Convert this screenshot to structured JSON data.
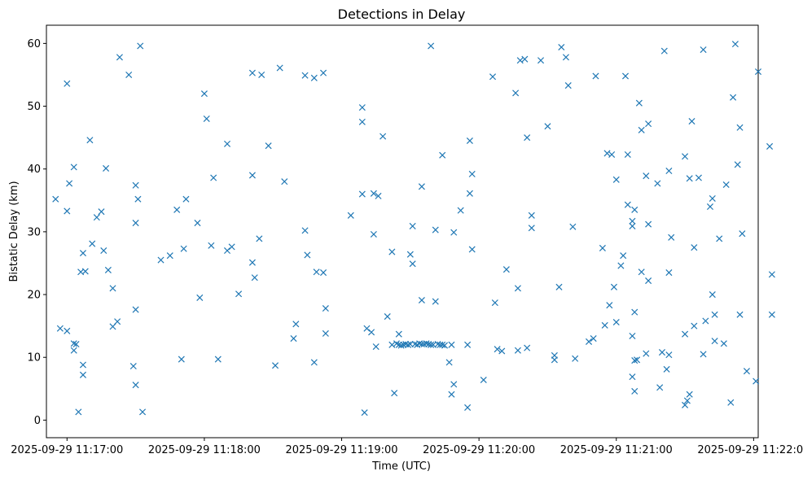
{
  "chart_data": {
    "type": "scatter",
    "title": "Detections in Delay",
    "xlabel": "Time (UTC)",
    "ylabel": "Bistatic Delay (km)",
    "x_unit": "seconds after 2025-09-29 11:17:00 UTC",
    "xlim": [
      -9,
      302
    ],
    "ylim": [
      -2.8,
      62.9
    ],
    "x_ticks": [
      0,
      60,
      120,
      180,
      240,
      300
    ],
    "x_tick_labels": [
      "2025-09-29 11:17:00",
      "2025-09-29 11:18:00",
      "2025-09-29 11:19:00",
      "2025-09-29 11:20:00",
      "2025-09-29 11:21:00",
      "2025-09-29 11:22:00"
    ],
    "y_ticks": [
      0,
      10,
      20,
      30,
      40,
      50,
      60
    ],
    "y_tick_labels": [
      "0",
      "10",
      "20",
      "30",
      "40",
      "50",
      "60"
    ],
    "marker": "x",
    "color": "#1f77b4",
    "grid": false,
    "legend": "none",
    "series": [
      {
        "points": [
          [
            -5,
            35.2
          ],
          [
            -3,
            14.6
          ],
          [
            0,
            14.2
          ],
          [
            0,
            53.6
          ],
          [
            0,
            33.3
          ],
          [
            1,
            37.7
          ],
          [
            3,
            40.3
          ],
          [
            3,
            12.2
          ],
          [
            3,
            11.1
          ],
          [
            4,
            12.1
          ],
          [
            5,
            1.3
          ],
          [
            6,
            23.6
          ],
          [
            7,
            26.6
          ],
          [
            8,
            23.7
          ],
          [
            7,
            7.2
          ],
          [
            7,
            8.8
          ],
          [
            10,
            44.6
          ],
          [
            11,
            28.1
          ],
          [
            13,
            32.3
          ],
          [
            15,
            33.2
          ],
          [
            16,
            27.0
          ],
          [
            17,
            40.1
          ],
          [
            18,
            23.9
          ],
          [
            20,
            21.0
          ],
          [
            20,
            14.9
          ],
          [
            22,
            15.7
          ],
          [
            23,
            57.8
          ],
          [
            27,
            55.0
          ],
          [
            29,
            8.6
          ],
          [
            30,
            5.6
          ],
          [
            30,
            17.6
          ],
          [
            30,
            31.4
          ],
          [
            30,
            37.4
          ],
          [
            31,
            35.2
          ],
          [
            32,
            59.6
          ],
          [
            33,
            1.3
          ],
          [
            41,
            25.5
          ],
          [
            45,
            26.2
          ],
          [
            48,
            33.5
          ],
          [
            50,
            9.7
          ],
          [
            51,
            27.3
          ],
          [
            52,
            35.2
          ],
          [
            57,
            31.4
          ],
          [
            58,
            19.5
          ],
          [
            60,
            52.0
          ],
          [
            61,
            48.0
          ],
          [
            63,
            27.8
          ],
          [
            64,
            38.6
          ],
          [
            66,
            9.7
          ],
          [
            70,
            44.0
          ],
          [
            70,
            27.0
          ],
          [
            72,
            27.6
          ],
          [
            75,
            20.1
          ],
          [
            81,
            55.3
          ],
          [
            81,
            39.0
          ],
          [
            81,
            25.1
          ],
          [
            82,
            22.7
          ],
          [
            84,
            28.9
          ],
          [
            85,
            55.0
          ],
          [
            88,
            43.7
          ],
          [
            91,
            8.7
          ],
          [
            93,
            56.1
          ],
          [
            95,
            38.0
          ],
          [
            99,
            13.0
          ],
          [
            100,
            15.3
          ],
          [
            104,
            54.9
          ],
          [
            104,
            30.2
          ],
          [
            105,
            26.3
          ],
          [
            108,
            54.5
          ],
          [
            108,
            9.2
          ],
          [
            109,
            23.6
          ],
          [
            112,
            55.3
          ],
          [
            112,
            23.5
          ],
          [
            113,
            17.8
          ],
          [
            113,
            13.8
          ],
          [
            124,
            32.6
          ],
          [
            129,
            49.8
          ],
          [
            129,
            47.5
          ],
          [
            129,
            36.0
          ],
          [
            130,
            1.2
          ],
          [
            131,
            14.6
          ],
          [
            133,
            14.0
          ],
          [
            134,
            36.1
          ],
          [
            134,
            29.6
          ],
          [
            135,
            11.7
          ],
          [
            136,
            35.7
          ],
          [
            138,
            45.2
          ],
          [
            140,
            16.5
          ],
          [
            142,
            26.8
          ],
          [
            142,
            12.0
          ],
          [
            143,
            4.3
          ],
          [
            144,
            12.2
          ],
          [
            145,
            13.7
          ],
          [
            145,
            12.0
          ],
          [
            146,
            11.9
          ],
          [
            147,
            12.0
          ],
          [
            148,
            12.1
          ],
          [
            149,
            12.0
          ],
          [
            150,
            26.4
          ],
          [
            150,
            12.1
          ],
          [
            151,
            24.9
          ],
          [
            151,
            30.9
          ],
          [
            152,
            12.1
          ],
          [
            153,
            12.0
          ],
          [
            154,
            12.2
          ],
          [
            155,
            12.1
          ],
          [
            155,
            37.2
          ],
          [
            155,
            19.1
          ],
          [
            156,
            12.1
          ],
          [
            157,
            12.2
          ],
          [
            158,
            12.1
          ],
          [
            159,
            12.0
          ],
          [
            159,
            59.6
          ],
          [
            160,
            12.0
          ],
          [
            161,
            30.3
          ],
          [
            161,
            18.9
          ],
          [
            162,
            12.1
          ],
          [
            163,
            12.0
          ],
          [
            164,
            12.0
          ],
          [
            164,
            42.2
          ],
          [
            165,
            11.9
          ],
          [
            167,
            9.2
          ],
          [
            168,
            4.1
          ],
          [
            169,
            5.7
          ],
          [
            168,
            12.0
          ],
          [
            169,
            29.9
          ],
          [
            172,
            33.4
          ],
          [
            175,
            2.0
          ],
          [
            175,
            12.0
          ],
          [
            176,
            44.5
          ],
          [
            176,
            36.1
          ],
          [
            177,
            39.2
          ],
          [
            177,
            27.2
          ],
          [
            182,
            6.4
          ],
          [
            186,
            54.7
          ],
          [
            187,
            18.7
          ],
          [
            188,
            11.3
          ],
          [
            190,
            11.0
          ],
          [
            192,
            24.0
          ],
          [
            196,
            52.1
          ],
          [
            197,
            11.1
          ],
          [
            197,
            21.0
          ],
          [
            198,
            57.3
          ],
          [
            200,
            57.5
          ],
          [
            201,
            45.0
          ],
          [
            201,
            11.5
          ],
          [
            203,
            32.6
          ],
          [
            203,
            30.6
          ],
          [
            207,
            57.3
          ],
          [
            210,
            46.8
          ],
          [
            213,
            10.3
          ],
          [
            213,
            9.6
          ],
          [
            215,
            21.2
          ],
          [
            216,
            59.4
          ],
          [
            218,
            57.8
          ],
          [
            219,
            53.3
          ],
          [
            221,
            30.8
          ],
          [
            222,
            9.8
          ],
          [
            228,
            12.5
          ],
          [
            230,
            13.0
          ],
          [
            231,
            54.8
          ],
          [
            234,
            27.4
          ],
          [
            235,
            15.1
          ],
          [
            236,
            42.5
          ],
          [
            237,
            18.3
          ],
          [
            238,
            42.3
          ],
          [
            239,
            21.2
          ],
          [
            240,
            15.6
          ],
          [
            240,
            38.3
          ],
          [
            242,
            24.6
          ],
          [
            243,
            26.2
          ],
          [
            244,
            54.8
          ],
          [
            245,
            34.3
          ],
          [
            245,
            42.3
          ],
          [
            247,
            31.7
          ],
          [
            247,
            13.4
          ],
          [
            247,
            6.9
          ],
          [
            247,
            30.9
          ],
          [
            248,
            33.5
          ],
          [
            248,
            17.2
          ],
          [
            248,
            4.6
          ],
          [
            248,
            9.5
          ],
          [
            249,
            9.6
          ],
          [
            250,
            50.5
          ],
          [
            251,
            23.6
          ],
          [
            251,
            46.2
          ],
          [
            253,
            10.6
          ],
          [
            253,
            38.9
          ],
          [
            254,
            22.2
          ],
          [
            254,
            47.2
          ],
          [
            254,
            31.2
          ],
          [
            258,
            37.7
          ],
          [
            259,
            5.2
          ],
          [
            260,
            10.8
          ],
          [
            261,
            58.8
          ],
          [
            262,
            8.1
          ],
          [
            263,
            39.7
          ],
          [
            263,
            23.5
          ],
          [
            263,
            10.4
          ],
          [
            264,
            29.1
          ],
          [
            270,
            13.7
          ],
          [
            270,
            42.0
          ],
          [
            270,
            2.4
          ],
          [
            271,
            3.1
          ],
          [
            272,
            4.1
          ],
          [
            272,
            38.5
          ],
          [
            273,
            47.6
          ],
          [
            274,
            15.0
          ],
          [
            274,
            27.5
          ],
          [
            276,
            38.6
          ],
          [
            278,
            59.0
          ],
          [
            278,
            10.5
          ],
          [
            279,
            15.8
          ],
          [
            281,
            34.0
          ],
          [
            282,
            35.3
          ],
          [
            282,
            20.0
          ],
          [
            283,
            16.8
          ],
          [
            283,
            12.6
          ],
          [
            285,
            28.9
          ],
          [
            287,
            12.2
          ],
          [
            288,
            37.5
          ],
          [
            290,
            2.8
          ],
          [
            291,
            51.4
          ],
          [
            292,
            59.9
          ],
          [
            293,
            40.7
          ],
          [
            294,
            46.6
          ],
          [
            294,
            16.8
          ],
          [
            295,
            29.7
          ],
          [
            297,
            7.8
          ],
          [
            301,
            6.2
          ],
          [
            302,
            55.5
          ],
          [
            307,
            43.6
          ],
          [
            308,
            16.8
          ],
          [
            308,
            23.2
          ]
        ]
      }
    ]
  }
}
